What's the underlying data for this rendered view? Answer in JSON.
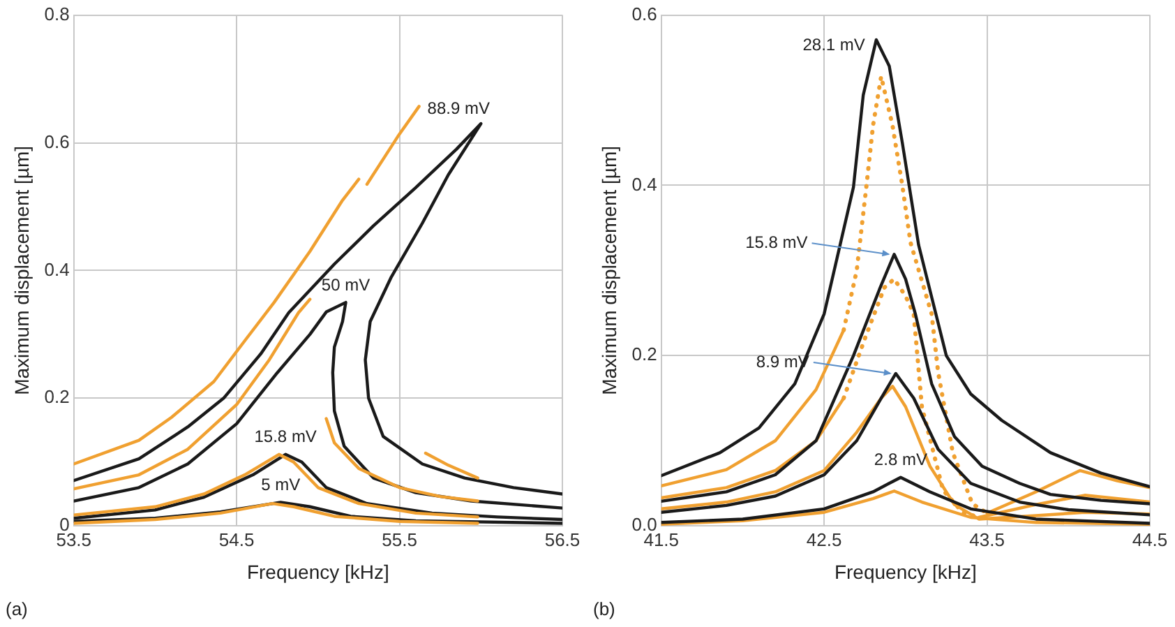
{
  "chart_data": [
    {
      "type": "line",
      "xlabel": "Frequency [kHz]",
      "ylabel": "Maximum displacement [µm]",
      "xlim": [
        53.5,
        56.5
      ],
      "xticks": [
        53.5,
        54.5,
        55.5,
        56.5
      ],
      "ylim": [
        0,
        0.8
      ],
      "yticks": [
        0,
        0.2,
        0.4,
        0.6,
        0.8
      ],
      "grid": true,
      "legend": false,
      "marker": "none",
      "line_style": "solid",
      "annotations": [
        {
          "text": "88.9 mV",
          "x": 55.62,
          "y": 0.657
        },
        {
          "text": "50 mV",
          "x": 55.17,
          "y": 0.35
        },
        {
          "text": "15.8 mV",
          "x": 54.8,
          "y": 0.112
        },
        {
          "text": "5 mV",
          "x": 54.77,
          "y": 0.037
        },
        "(a)"
      ],
      "series": [
        {
          "color": "#f0a030",
          "x": [
            53.5,
            53.9,
            54.1,
            54.36,
            54.55,
            54.73,
            54.95,
            55.15,
            55.25,
            55.27,
            55.3,
            55.49,
            55.62,
            55.64,
            55.66,
            55.8,
            55.98
          ],
          "values": [
            0.097,
            0.134,
            0.17,
            0.226,
            0.29,
            0.35,
            0.43,
            0.51,
            0.543,
            null,
            0.535,
            0.61,
            0.657,
            null,
            0.114,
            0.095,
            0.075
          ]
        },
        {
          "color": "#1a1a1a",
          "x": [
            53.5,
            53.9,
            54.2,
            54.42,
            54.65,
            54.82,
            55.1,
            55.34,
            55.6,
            55.85,
            56.0,
            55.8,
            55.64,
            55.45,
            55.32,
            55.29,
            55.31,
            55.4,
            55.64,
            55.9,
            56.2,
            56.5
          ],
          "values": [
            0.071,
            0.105,
            0.155,
            0.2,
            0.27,
            0.334,
            0.41,
            0.47,
            0.53,
            0.59,
            0.63,
            0.55,
            0.474,
            0.39,
            0.32,
            0.26,
            0.2,
            0.14,
            0.097,
            0.075,
            0.06,
            0.05
          ]
        },
        {
          "color": "#f0a030",
          "x": [
            53.5,
            53.9,
            54.2,
            54.5,
            54.7,
            54.88,
            54.95,
            55.0,
            55.05,
            55.1,
            55.25,
            55.5,
            55.75,
            55.98
          ],
          "values": [
            0.058,
            0.08,
            0.12,
            0.19,
            0.26,
            0.334,
            0.355,
            null,
            0.168,
            0.13,
            0.09,
            0.06,
            0.046,
            0.039
          ]
        },
        {
          "color": "#1a1a1a",
          "x": [
            53.5,
            53.9,
            54.2,
            54.5,
            54.75,
            54.95,
            55.05,
            55.17,
            55.15,
            55.1,
            55.09,
            55.1,
            55.16,
            55.34,
            55.6,
            55.94,
            56.5
          ],
          "values": [
            0.039,
            0.06,
            0.097,
            0.16,
            0.24,
            0.3,
            0.335,
            0.35,
            0.32,
            0.28,
            0.24,
            0.18,
            0.125,
            0.075,
            0.052,
            0.039,
            0.028
          ]
        },
        {
          "color": "#f0a030",
          "x": [
            53.5,
            54.0,
            54.3,
            54.55,
            54.76,
            54.85,
            55.0,
            55.25,
            55.6,
            55.98
          ],
          "values": [
            0.017,
            0.03,
            0.05,
            0.08,
            0.112,
            0.1,
            0.06,
            0.035,
            0.02,
            0.014
          ]
        },
        {
          "color": "#1a1a1a",
          "x": [
            53.5,
            54.0,
            54.3,
            54.6,
            54.8,
            54.9,
            55.05,
            55.3,
            55.7,
            56.1,
            56.5
          ],
          "values": [
            0.012,
            0.025,
            0.045,
            0.08,
            0.112,
            0.1,
            0.06,
            0.035,
            0.02,
            0.014,
            0.01
          ]
        },
        {
          "color": "#f0a030",
          "x": [
            53.5,
            54.0,
            54.4,
            54.72,
            54.85,
            55.1,
            55.5,
            55.98
          ],
          "values": [
            0.004,
            0.01,
            0.02,
            0.035,
            0.03,
            0.015,
            0.007,
            0.004
          ]
        },
        {
          "color": "#1a1a1a",
          "x": [
            53.5,
            54.0,
            54.4,
            54.77,
            54.95,
            55.2,
            55.6,
            56.5
          ],
          "values": [
            0.007,
            0.012,
            0.022,
            0.037,
            0.03,
            0.015,
            0.008,
            0.004
          ]
        }
      ]
    },
    {
      "type": "line",
      "xlabel": "Frequency [kHz]",
      "ylabel": "Maximum displacement [µm]",
      "xlim": [
        41.5,
        44.5
      ],
      "xticks": [
        41.5,
        42.5,
        43.5,
        44.5
      ],
      "ylim": [
        0,
        0.6
      ],
      "yticks": [
        {
          "value": 0,
          "label": "0.0"
        },
        0.2,
        0.4,
        0.6
      ],
      "grid": true,
      "legend": false,
      "marker": "none",
      "line_style": "solid",
      "annotations": [
        {
          "text": "28.1 mV",
          "x": 42.82,
          "y": 0.571
        },
        {
          "text": "15.8 mV",
          "x": 42.93,
          "y": 0.319
        },
        {
          "text": "8.9 mV",
          "x": 42.94,
          "y": 0.179
        },
        {
          "text": "2.8 mV",
          "x": 42.97,
          "y": 0.057
        },
        "(b)"
      ],
      "series": [
        {
          "color": "#1a1a1a",
          "x": [
            41.5,
            41.86,
            42.1,
            42.32,
            42.5,
            42.68,
            42.74,
            42.82,
            42.9,
            42.98,
            43.08,
            43.25,
            43.4,
            43.59,
            43.89,
            44.2,
            44.5
          ],
          "values": [
            0.059,
            0.086,
            0.115,
            0.167,
            0.249,
            0.398,
            0.506,
            0.571,
            0.54,
            0.45,
            0.33,
            0.2,
            0.155,
            0.124,
            0.086,
            0.062,
            0.046
          ]
        },
        {
          "color": "#1a1a1a",
          "x": [
            41.5,
            41.9,
            42.2,
            42.45,
            42.68,
            42.84,
            42.93,
            43.0,
            43.06,
            43.16,
            43.3,
            43.47,
            43.7,
            43.89,
            44.2,
            44.5
          ],
          "values": [
            0.029,
            0.04,
            0.06,
            0.1,
            0.2,
            0.278,
            0.319,
            0.29,
            0.249,
            0.167,
            0.105,
            0.07,
            0.05,
            0.037,
            0.03,
            0.026
          ]
        },
        {
          "color": "#1a1a1a",
          "x": [
            41.5,
            41.9,
            42.2,
            42.5,
            42.7,
            42.85,
            42.94,
            43.05,
            43.2,
            43.4,
            43.7,
            44.0,
            44.5
          ],
          "values": [
            0.016,
            0.024,
            0.035,
            0.06,
            0.1,
            0.15,
            0.179,
            0.15,
            0.09,
            0.05,
            0.028,
            0.019,
            0.013
          ]
        },
        {
          "color": "#1a1a1a",
          "x": [
            41.5,
            42.0,
            42.5,
            42.8,
            42.97,
            43.15,
            43.4,
            43.8,
            44.5
          ],
          "values": [
            0.004,
            0.008,
            0.02,
            0.04,
            0.057,
            0.04,
            0.02,
            0.008,
            0.003
          ]
        },
        {
          "color": "#f0a030",
          "x": [
            41.5,
            41.9,
            42.2,
            42.45,
            42.62
          ],
          "values": [
            0.047,
            0.066,
            0.1,
            0.16,
            0.23
          ]
        },
        {
          "color": "#f0a030",
          "line_style": "dotted",
          "x": [
            42.62,
            42.7,
            42.76,
            42.8,
            42.85,
            42.92,
            42.98,
            43.03,
            43.16,
            43.2,
            43.29,
            43.41,
            43.5
          ],
          "values": [
            0.23,
            0.3,
            0.4,
            0.47,
            0.528,
            0.47,
            0.4,
            0.333,
            0.249,
            0.18,
            0.086,
            0.026,
            0.015
          ]
        },
        {
          "color": "#f0a030",
          "x": [
            43.5,
            43.8,
            44.07,
            44.3,
            44.5
          ],
          "values": [
            0.015,
            0.04,
            0.065,
            0.053,
            0.045
          ]
        },
        {
          "color": "#f0a030",
          "x": [
            41.5,
            41.9,
            42.2,
            42.45,
            42.62
          ],
          "values": [
            0.033,
            0.045,
            0.065,
            0.1,
            0.15
          ]
        },
        {
          "color": "#f0a030",
          "line_style": "dotted",
          "x": [
            42.62,
            42.75,
            42.87,
            42.93,
            43.0,
            43.05,
            43.1,
            43.23,
            43.35,
            43.45
          ],
          "values": [
            0.15,
            0.22,
            0.28,
            0.29,
            0.27,
            0.249,
            0.14,
            0.042,
            0.016,
            0.01
          ]
        },
        {
          "color": "#f0a030",
          "x": [
            43.45,
            43.8,
            44.1,
            44.5
          ],
          "values": [
            0.01,
            0.025,
            0.036,
            0.028
          ]
        },
        {
          "color": "#f0a030",
          "x": [
            41.5,
            41.9,
            42.2,
            42.5,
            42.7,
            42.85,
            42.92,
            43.0,
            43.15,
            43.3,
            43.45,
            43.8,
            44.1,
            44.5
          ],
          "values": [
            0.02,
            0.028,
            0.04,
            0.065,
            0.11,
            0.15,
            0.164,
            0.14,
            0.07,
            0.025,
            0.008,
            0.012,
            0.016,
            0.014
          ]
        },
        {
          "color": "#f0a030",
          "x": [
            41.5,
            42.0,
            42.5,
            42.8,
            42.93,
            43.1,
            43.4,
            43.8,
            44.5
          ],
          "values": [
            0.002,
            0.006,
            0.016,
            0.032,
            0.041,
            0.028,
            0.01,
            0.004,
            0.002
          ]
        }
      ]
    }
  ]
}
